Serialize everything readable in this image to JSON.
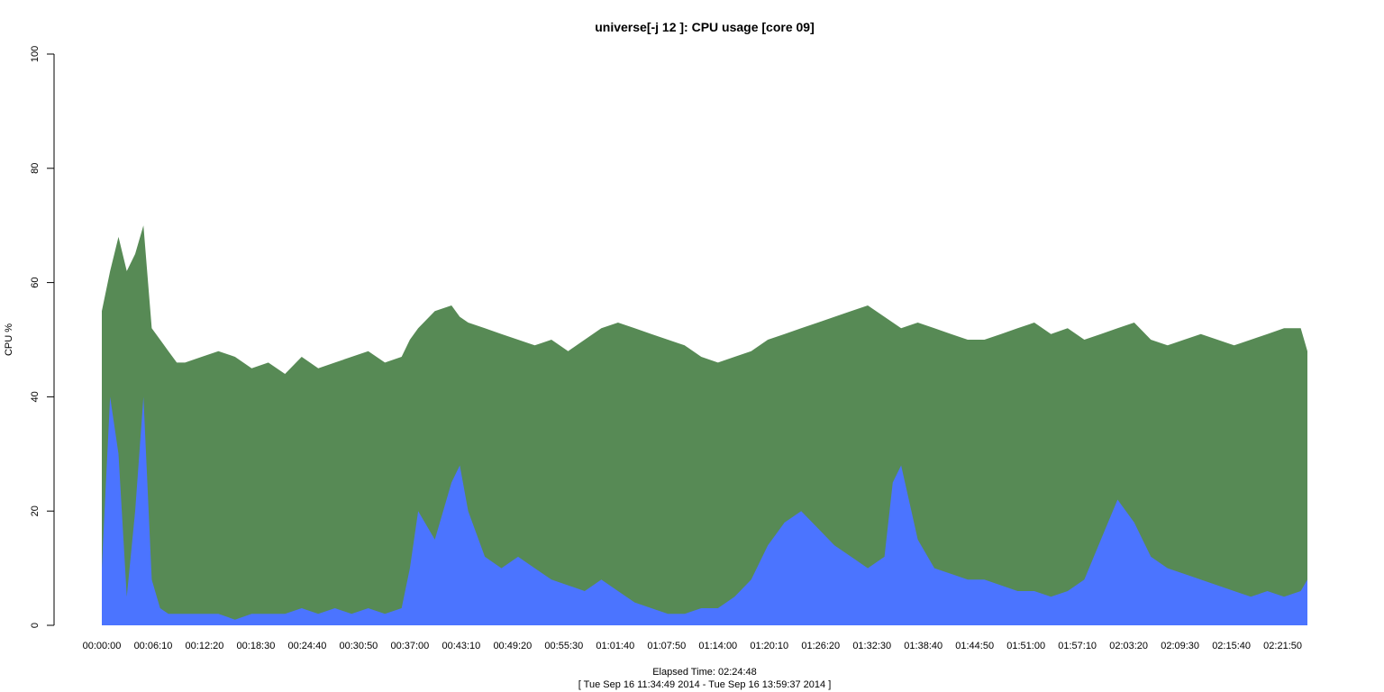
{
  "chart_data": {
    "type": "area",
    "title": "universe[-j 12  ]: CPU usage [core 09]",
    "xlabel": "Elapsed Time: 02:24:48",
    "xlabel_line2": "[ Tue Sep 16 11:34:49 2014 - Tue Sep 16 13:59:37 2014 ]",
    "ylabel": "CPU %",
    "ylim": [
      0,
      100
    ],
    "yticks": [
      0,
      20,
      40,
      60,
      80,
      100
    ],
    "xlim_seconds": [
      0,
      8688
    ],
    "xticks": [
      "00:00:00",
      "00:06:10",
      "00:12:20",
      "00:18:30",
      "00:24:40",
      "00:30:50",
      "00:37:00",
      "00:43:10",
      "00:49:20",
      "00:55:30",
      "01:01:40",
      "01:07:50",
      "01:14:00",
      "01:20:10",
      "01:26:20",
      "01:32:30",
      "01:38:40",
      "01:44:50",
      "01:51:00",
      "01:57:10",
      "02:03:20",
      "02:09:30",
      "02:15:40",
      "02:21:50"
    ],
    "grid": false,
    "legend": "none",
    "colors": {
      "total": "#578a55",
      "system": "#4b74ff"
    },
    "series": [
      {
        "color_key": "total",
        "x_minutes": [
          0,
          1,
          2,
          3,
          4,
          5,
          6,
          7,
          8,
          9,
          10,
          12,
          14,
          16,
          18,
          20,
          22,
          24,
          26,
          28,
          30,
          32,
          34,
          36,
          37,
          38,
          40,
          42,
          43,
          44,
          46,
          48,
          50,
          52,
          54,
          56,
          58,
          60,
          62,
          64,
          66,
          68,
          70,
          72,
          74,
          76,
          78,
          80,
          82,
          84,
          86,
          88,
          90,
          92,
          94,
          96,
          98,
          100,
          102,
          104,
          106,
          108,
          110,
          112,
          114,
          116,
          118,
          120,
          122,
          124,
          126,
          128,
          130,
          132,
          134,
          136,
          138,
          140,
          142,
          144,
          144.8
        ],
        "values": [
          55,
          62,
          68,
          62,
          65,
          70,
          52,
          50,
          48,
          46,
          46,
          47,
          48,
          47,
          45,
          46,
          44,
          47,
          45,
          46,
          47,
          48,
          46,
          47,
          50,
          52,
          55,
          56,
          54,
          53,
          52,
          51,
          50,
          49,
          50,
          48,
          50,
          52,
          53,
          52,
          51,
          50,
          49,
          47,
          46,
          47,
          48,
          50,
          51,
          52,
          53,
          54,
          55,
          56,
          54,
          52,
          53,
          52,
          51,
          50,
          50,
          51,
          52,
          53,
          51,
          52,
          50,
          51,
          52,
          53,
          50,
          49,
          50,
          51,
          50,
          49,
          50,
          51,
          52,
          52,
          48
        ]
      },
      {
        "color_key": "system",
        "x_minutes": [
          0,
          0.5,
          1,
          2,
          3,
          4,
          5,
          6,
          7,
          8,
          10,
          12,
          14,
          16,
          18,
          20,
          22,
          24,
          26,
          28,
          30,
          32,
          34,
          36,
          37,
          38,
          40,
          42,
          43,
          44,
          46,
          48,
          50,
          52,
          54,
          56,
          58,
          60,
          62,
          64,
          66,
          68,
          70,
          72,
          74,
          76,
          78,
          80,
          82,
          84,
          86,
          88,
          90,
          92,
          94,
          95,
          96,
          98,
          100,
          102,
          104,
          106,
          108,
          110,
          112,
          114,
          116,
          118,
          120,
          122,
          124,
          126,
          128,
          130,
          132,
          134,
          136,
          138,
          140,
          142,
          144,
          144.8
        ],
        "values": [
          10,
          25,
          40,
          30,
          5,
          20,
          40,
          8,
          3,
          2,
          2,
          2,
          2,
          1,
          2,
          2,
          2,
          3,
          2,
          3,
          2,
          3,
          2,
          3,
          10,
          20,
          15,
          25,
          28,
          20,
          12,
          10,
          12,
          10,
          8,
          7,
          6,
          8,
          6,
          4,
          3,
          2,
          2,
          3,
          3,
          5,
          8,
          14,
          18,
          20,
          17,
          14,
          12,
          10,
          12,
          25,
          28,
          15,
          10,
          9,
          8,
          8,
          7,
          6,
          6,
          5,
          6,
          8,
          15,
          22,
          18,
          12,
          10,
          9,
          8,
          7,
          6,
          5,
          6,
          5,
          6,
          8
        ]
      }
    ]
  }
}
